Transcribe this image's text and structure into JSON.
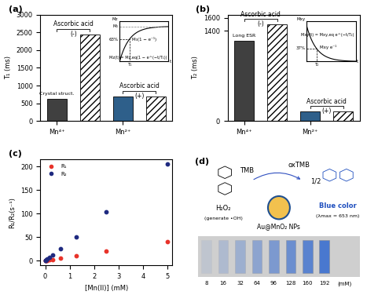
{
  "chart_data": [
    {
      "type": "bar",
      "title": "(a)",
      "ylabel": "T₁ (ms)",
      "categories": [
        "Mn⁴⁺",
        null,
        "Mn²⁺",
        null
      ],
      "values": [
        620,
        2450,
        700,
        690
      ],
      "colors": [
        "#404040",
        "#ffffff",
        "#2e5f8a",
        "#ffffff"
      ],
      "ylim": [
        0,
        3000
      ],
      "yticks": [
        0,
        500,
        1000,
        1500,
        2000,
        2500,
        3000
      ],
      "annotations": {
        "reagent": "Ascorbic acid",
        "without": "(-)",
        "with": "(+)",
        "icon": "Crystal struct.",
        "inset_y": "Mz",
        "inset_level": "M₀",
        "inset_percent": "63%",
        "inset_time": "T₁",
        "inset_x": "t",
        "inset_formula": "Mz(t) = Mz,eq(1 − e^(−t/T₁))",
        "inset_curve": "M₀(1 − e⁻¹)"
      }
    },
    {
      "type": "bar",
      "title": "(b)",
      "ylabel": "T₂ (ms)",
      "categories": [
        "Mn⁴⁺",
        null,
        "Mn²⁺",
        null
      ],
      "values": [
        1250,
        1500,
        150,
        145
      ],
      "colors": [
        "#404040",
        "#ffffff",
        "#2e5f8a",
        "#ffffff"
      ],
      "ylim": [
        0,
        1650
      ],
      "yticks": [
        0,
        1400,
        1600
      ],
      "annotations": {
        "reagent": "Ascorbic acid",
        "without": "(-)",
        "with": "(+)",
        "icon": "Long ESR",
        "inset_y": "Mxy",
        "inset_level": "Mxy",
        "inset_percent": "37%",
        "inset_time": "T₂",
        "inset_x": "t",
        "inset_formula": "Mxy(t) = Mxy,eq e^(−t/T₂)",
        "inset_curve": "Mxy e⁻¹"
      }
    },
    {
      "type": "scatter",
      "title": "(c)",
      "xlabel": "[Mn(II)] (mM)",
      "ylabel": "R₁/R₂(s⁻¹)",
      "x": [
        0,
        0.02,
        0.04,
        0.08,
        0.16,
        0.31,
        0.63,
        1.25,
        2.5,
        5
      ],
      "series": [
        {
          "name": "R₁",
          "color": "#e8332a",
          "values": [
            0.3,
            0.5,
            0.8,
            1.2,
            2,
            3,
            5,
            10,
            20,
            40
          ]
        },
        {
          "name": "R₂",
          "color": "#1f2a80",
          "values": [
            0.5,
            1,
            2,
            4,
            7,
            12,
            25,
            50,
            103,
            205
          ]
        }
      ],
      "xlim": [
        -0.2,
        5.2
      ],
      "ylim": [
        -10,
        215
      ],
      "xticks": [
        0,
        1,
        2,
        3,
        4,
        5
      ],
      "yticks": [
        0,
        50,
        100,
        150,
        200
      ],
      "legend": "upper left",
      "marker": "o"
    }
  ],
  "diagram": {
    "title": "(d)",
    "molecules": {
      "reactant": "TMB",
      "product": "oxTMB",
      "ratio": "1/2"
    },
    "oxidant": {
      "label": "H₂O₂",
      "note": "(generate •OH)"
    },
    "catalyst": "Au@MnO₂ NPs",
    "result": {
      "label": "Blue color",
      "note": "(λmax = 653 nm)"
    },
    "vials": {
      "concentrations": [
        8,
        16,
        32,
        64,
        96,
        128,
        160,
        192
      ],
      "unit": "(mM)"
    }
  }
}
